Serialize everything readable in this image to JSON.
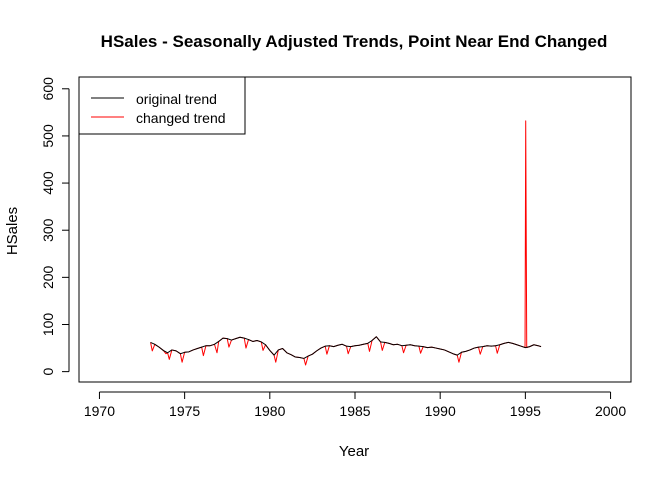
{
  "chart_data": {
    "type": "line",
    "title": "HSales - Seasonally Adjusted Trends, Point Near End Changed",
    "xlabel": "Year",
    "ylabel": "HSales",
    "xlim": [
      1968.8,
      2001.2
    ],
    "ylim": [
      -22,
      625
    ],
    "xticks": [
      1970,
      1975,
      1980,
      1985,
      1990,
      1995,
      2000
    ],
    "yticks": [
      0,
      100,
      200,
      300,
      400,
      500,
      600
    ],
    "grid": false,
    "legend_position": "top-left",
    "series": [
      {
        "name": "original trend",
        "color": "#000000",
        "points": [
          [
            1973.0,
            62
          ],
          [
            1973.25,
            58
          ],
          [
            1973.5,
            52
          ],
          [
            1973.75,
            45
          ],
          [
            1974.0,
            40
          ],
          [
            1974.25,
            46
          ],
          [
            1974.5,
            44
          ],
          [
            1974.75,
            38
          ],
          [
            1975.0,
            41
          ],
          [
            1975.25,
            42
          ],
          [
            1975.5,
            46
          ],
          [
            1975.75,
            49
          ],
          [
            1976.0,
            52
          ],
          [
            1976.25,
            55
          ],
          [
            1976.5,
            55
          ],
          [
            1976.75,
            58
          ],
          [
            1977.0,
            64
          ],
          [
            1977.25,
            71
          ],
          [
            1977.5,
            70
          ],
          [
            1977.75,
            67
          ],
          [
            1978.0,
            70
          ],
          [
            1978.25,
            73
          ],
          [
            1978.5,
            71
          ],
          [
            1978.75,
            68
          ],
          [
            1979.0,
            64
          ],
          [
            1979.25,
            66
          ],
          [
            1979.5,
            63
          ],
          [
            1979.75,
            57
          ],
          [
            1980.0,
            45
          ],
          [
            1980.25,
            35
          ],
          [
            1980.5,
            46
          ],
          [
            1980.75,
            49
          ],
          [
            1981.0,
            40
          ],
          [
            1981.25,
            36
          ],
          [
            1981.5,
            31
          ],
          [
            1981.75,
            30
          ],
          [
            1982.0,
            28
          ],
          [
            1982.25,
            33
          ],
          [
            1982.5,
            37
          ],
          [
            1982.75,
            44
          ],
          [
            1983.0,
            50
          ],
          [
            1983.25,
            54
          ],
          [
            1983.5,
            55
          ],
          [
            1983.75,
            53
          ],
          [
            1984.0,
            56
          ],
          [
            1984.25,
            58
          ],
          [
            1984.5,
            54
          ],
          [
            1984.75,
            53
          ],
          [
            1985.0,
            55
          ],
          [
            1985.25,
            56
          ],
          [
            1985.5,
            58
          ],
          [
            1985.75,
            60
          ],
          [
            1986.0,
            66
          ],
          [
            1986.25,
            74
          ],
          [
            1986.5,
            63
          ],
          [
            1986.75,
            62
          ],
          [
            1987.0,
            60
          ],
          [
            1987.25,
            57
          ],
          [
            1987.5,
            58
          ],
          [
            1987.75,
            55
          ],
          [
            1988.0,
            56
          ],
          [
            1988.25,
            57
          ],
          [
            1988.5,
            55
          ],
          [
            1988.75,
            54
          ],
          [
            1989.0,
            53
          ],
          [
            1989.25,
            51
          ],
          [
            1989.5,
            52
          ],
          [
            1989.75,
            50
          ],
          [
            1990.0,
            48
          ],
          [
            1990.25,
            46
          ],
          [
            1990.5,
            42
          ],
          [
            1990.75,
            38
          ],
          [
            1991.0,
            35
          ],
          [
            1991.25,
            41
          ],
          [
            1991.5,
            43
          ],
          [
            1991.75,
            46
          ],
          [
            1992.0,
            50
          ],
          [
            1992.25,
            52
          ],
          [
            1992.5,
            53
          ],
          [
            1992.75,
            55
          ],
          [
            1993.0,
            54
          ],
          [
            1993.25,
            55
          ],
          [
            1993.5,
            57
          ],
          [
            1993.75,
            60
          ],
          [
            1994.0,
            62
          ],
          [
            1994.25,
            60
          ],
          [
            1994.5,
            57
          ],
          [
            1994.75,
            54
          ],
          [
            1995.0,
            51
          ],
          [
            1995.25,
            53
          ],
          [
            1995.5,
            57
          ],
          [
            1995.75,
            55
          ],
          [
            1995.92,
            53
          ]
        ]
      },
      {
        "name": "changed trend",
        "color": "#ff0000",
        "points": [
          [
            1973.0,
            62
          ],
          [
            1973.1,
            44
          ],
          [
            1973.25,
            58
          ],
          [
            1973.5,
            52
          ],
          [
            1973.75,
            45
          ],
          [
            1973.9,
            38
          ],
          [
            1974.0,
            40
          ],
          [
            1974.1,
            26
          ],
          [
            1974.25,
            46
          ],
          [
            1974.5,
            44
          ],
          [
            1974.75,
            38
          ],
          [
            1974.85,
            20
          ],
          [
            1975.0,
            41
          ],
          [
            1975.25,
            42
          ],
          [
            1975.5,
            46
          ],
          [
            1975.75,
            49
          ],
          [
            1976.0,
            52
          ],
          [
            1976.1,
            34
          ],
          [
            1976.25,
            55
          ],
          [
            1976.5,
            55
          ],
          [
            1976.75,
            58
          ],
          [
            1976.9,
            40
          ],
          [
            1977.0,
            64
          ],
          [
            1977.25,
            71
          ],
          [
            1977.5,
            70
          ],
          [
            1977.6,
            52
          ],
          [
            1977.75,
            67
          ],
          [
            1978.0,
            70
          ],
          [
            1978.25,
            73
          ],
          [
            1978.5,
            71
          ],
          [
            1978.6,
            50
          ],
          [
            1978.75,
            68
          ],
          [
            1979.0,
            64
          ],
          [
            1979.25,
            66
          ],
          [
            1979.5,
            63
          ],
          [
            1979.6,
            45
          ],
          [
            1979.75,
            57
          ],
          [
            1980.0,
            45
          ],
          [
            1980.25,
            35
          ],
          [
            1980.35,
            20
          ],
          [
            1980.5,
            46
          ],
          [
            1980.75,
            49
          ],
          [
            1981.0,
            40
          ],
          [
            1981.25,
            36
          ],
          [
            1981.5,
            31
          ],
          [
            1981.75,
            30
          ],
          [
            1982.0,
            28
          ],
          [
            1982.1,
            14
          ],
          [
            1982.25,
            33
          ],
          [
            1982.5,
            37
          ],
          [
            1982.75,
            44
          ],
          [
            1983.0,
            50
          ],
          [
            1983.25,
            54
          ],
          [
            1983.35,
            37
          ],
          [
            1983.5,
            55
          ],
          [
            1983.75,
            53
          ],
          [
            1984.0,
            56
          ],
          [
            1984.25,
            58
          ],
          [
            1984.5,
            54
          ],
          [
            1984.6,
            38
          ],
          [
            1984.75,
            53
          ],
          [
            1985.0,
            55
          ],
          [
            1985.25,
            56
          ],
          [
            1985.5,
            58
          ],
          [
            1985.75,
            60
          ],
          [
            1985.85,
            43
          ],
          [
            1986.0,
            66
          ],
          [
            1986.25,
            74
          ],
          [
            1986.5,
            63
          ],
          [
            1986.6,
            45
          ],
          [
            1986.75,
            62
          ],
          [
            1987.0,
            60
          ],
          [
            1987.25,
            57
          ],
          [
            1987.5,
            58
          ],
          [
            1987.75,
            55
          ],
          [
            1987.85,
            40
          ],
          [
            1988.0,
            56
          ],
          [
            1988.25,
            57
          ],
          [
            1988.5,
            55
          ],
          [
            1988.75,
            54
          ],
          [
            1988.85,
            39
          ],
          [
            1989.0,
            53
          ],
          [
            1989.25,
            51
          ],
          [
            1989.5,
            52
          ],
          [
            1989.75,
            50
          ],
          [
            1990.0,
            48
          ],
          [
            1990.25,
            46
          ],
          [
            1990.5,
            42
          ],
          [
            1990.75,
            38
          ],
          [
            1991.0,
            35
          ],
          [
            1991.1,
            20
          ],
          [
            1991.25,
            41
          ],
          [
            1991.5,
            43
          ],
          [
            1991.75,
            46
          ],
          [
            1992.0,
            50
          ],
          [
            1992.25,
            52
          ],
          [
            1992.35,
            37
          ],
          [
            1992.5,
            53
          ],
          [
            1992.75,
            55
          ],
          [
            1993.0,
            54
          ],
          [
            1993.25,
            55
          ],
          [
            1993.35,
            39
          ],
          [
            1993.5,
            57
          ],
          [
            1993.75,
            60
          ],
          [
            1994.0,
            62
          ],
          [
            1994.25,
            60
          ],
          [
            1994.5,
            57
          ],
          [
            1994.75,
            54
          ],
          [
            1994.98,
            51
          ],
          [
            1995.02,
            532
          ],
          [
            1995.08,
            51
          ],
          [
            1995.25,
            53
          ],
          [
            1995.5,
            57
          ],
          [
            1995.75,
            55
          ],
          [
            1995.92,
            53
          ]
        ]
      }
    ]
  }
}
